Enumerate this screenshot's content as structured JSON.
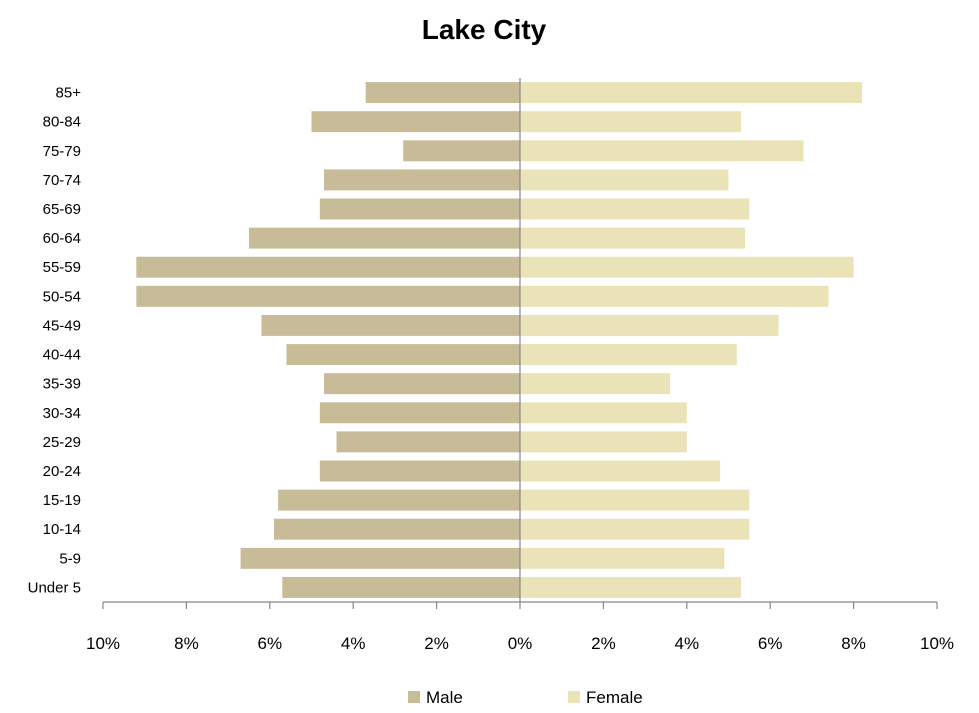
{
  "chart_data": {
    "type": "bar",
    "orientation": "horizontal",
    "title": "Lake City",
    "categories": [
      "Under 5",
      "5-9",
      "10-14",
      "15-19",
      "20-24",
      "25-29",
      "30-34",
      "35-39",
      "40-44",
      "45-49",
      "50-54",
      "55-59",
      "60-64",
      "65-69",
      "70-74",
      "75-79",
      "80-84",
      "85+"
    ],
    "series": [
      {
        "name": "Male",
        "color": "#c8bb98",
        "values": [
          5.7,
          6.7,
          5.9,
          5.8,
          4.8,
          4.4,
          4.8,
          4.7,
          5.6,
          6.2,
          9.2,
          9.2,
          6.5,
          4.8,
          4.7,
          2.8,
          5.0,
          3.7
        ]
      },
      {
        "name": "Female",
        "color": "#ebe3b8",
        "values": [
          5.3,
          4.9,
          5.5,
          5.5,
          4.8,
          4.0,
          4.0,
          3.6,
          5.2,
          6.2,
          7.4,
          8.0,
          5.4,
          5.5,
          5.0,
          6.8,
          5.3,
          8.2
        ]
      }
    ],
    "xlim": [
      -10,
      10
    ],
    "x_ticks": [
      -10,
      -8,
      -6,
      -4,
      -2,
      0,
      2,
      4,
      6,
      8,
      10
    ],
    "x_tick_labels": [
      "10%",
      "8%",
      "6%",
      "4%",
      "2%",
      "0%",
      "2%",
      "4%",
      "6%",
      "8%",
      "10%"
    ],
    "xlabel": "",
    "ylabel": "",
    "grid": false,
    "legend_position": "bottom"
  }
}
